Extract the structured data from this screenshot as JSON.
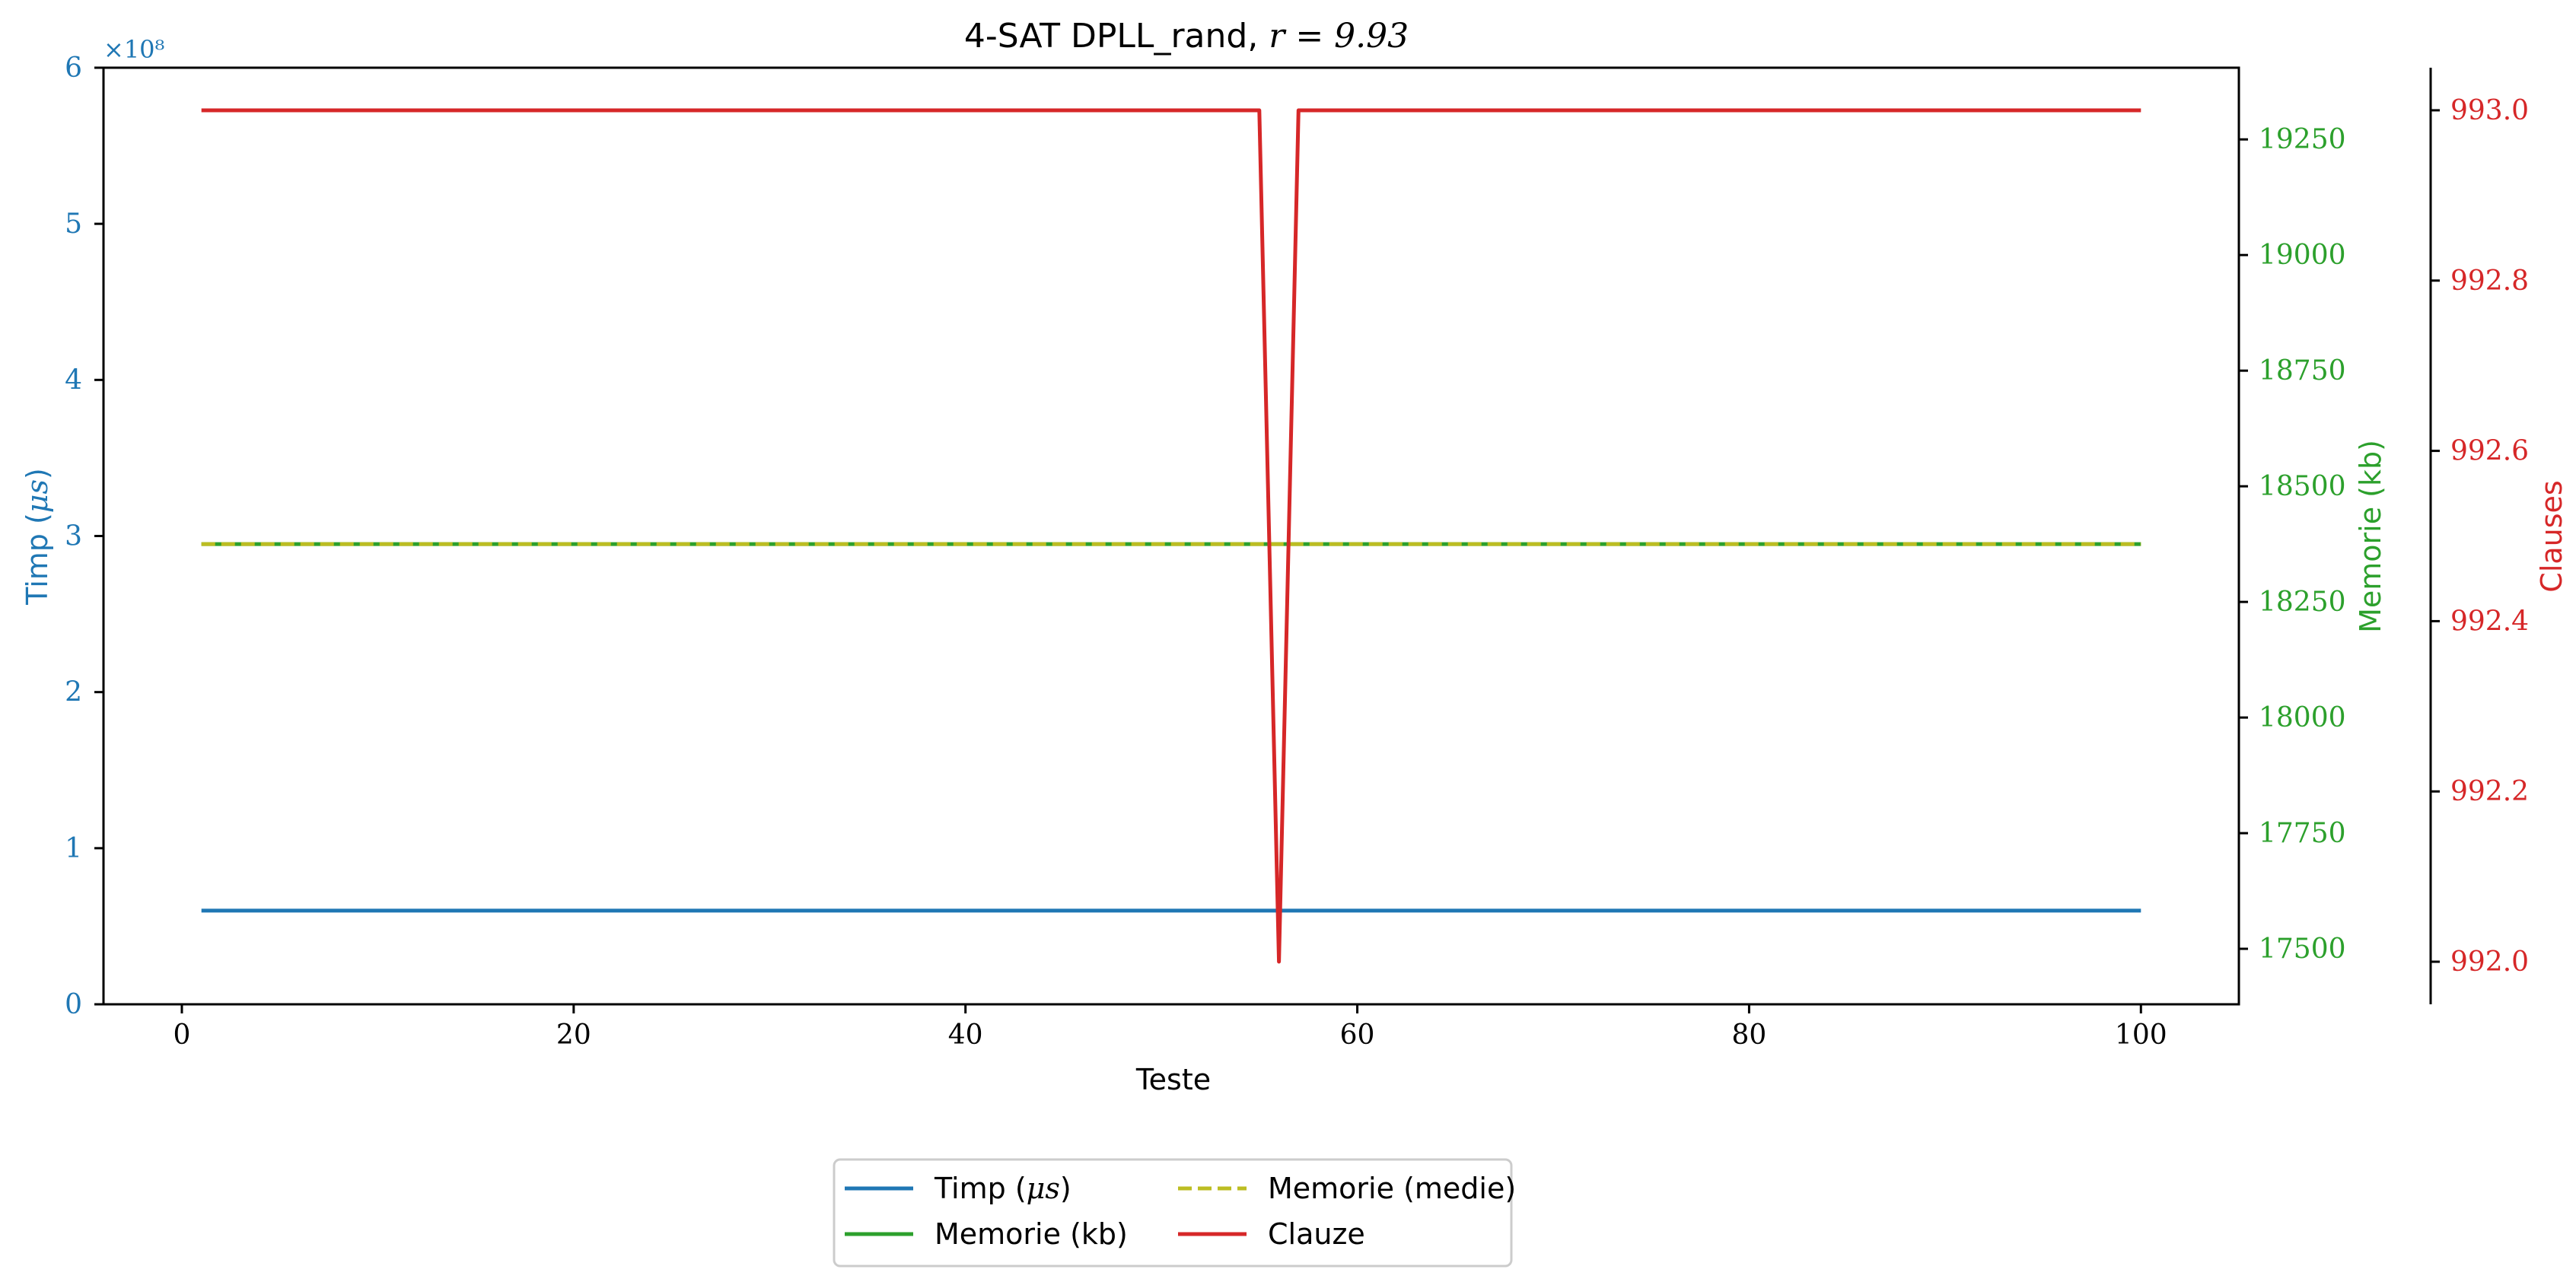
{
  "chart_data": {
    "type": "line",
    "title": "4-SAT DPLL_rand, r = 9.93",
    "title_prefix": "4-SAT DPLL_rand, ",
    "title_math": "r = 9.93",
    "xlabel": "Teste",
    "xlim": [
      -4,
      105
    ],
    "xticks": [
      0,
      20,
      40,
      60,
      80,
      100
    ],
    "axes": {
      "left": {
        "label_prefix": "Timp (",
        "label_math": "μs",
        "label_suffix": ")",
        "color": "#1f77b4",
        "ylim": [
          0,
          600000000
        ],
        "ticks": [
          0,
          1,
          2,
          3,
          4,
          5,
          6
        ],
        "multiplier": "×10⁸"
      },
      "right1": {
        "label": "Memorie (kb)",
        "color": "#2ca02c",
        "ylim": [
          17380,
          19405
        ],
        "ticks": [
          17500,
          17750,
          18000,
          18250,
          18500,
          18750,
          19000,
          19250
        ]
      },
      "right2": {
        "label": "Clauses",
        "color": "#d62728",
        "ylim": [
          991.95,
          993.05
        ],
        "ticks": [
          "992.0",
          "992.2",
          "992.4",
          "992.6",
          "992.8",
          "993.0"
        ]
      }
    },
    "series": [
      {
        "name": "Timp (μs)",
        "name_prefix": "Timp (",
        "name_math": "μs",
        "name_suffix": ")",
        "axis": "left",
        "color": "#1f77b4",
        "style": "solid",
        "x_range": [
          1,
          100
        ],
        "constant": 60000000
      },
      {
        "name": "Memorie (kb)",
        "axis": "right1",
        "color": "#2ca02c",
        "style": "solid",
        "x_range": [
          1,
          100
        ],
        "constant": 18375
      },
      {
        "name": "Memorie (medie)",
        "axis": "right1",
        "color": "#bcbd22",
        "style": "dashed",
        "x_range": [
          1,
          100
        ],
        "constant": 18375
      },
      {
        "name": "Clauze",
        "axis": "right2",
        "color": "#d62728",
        "style": "solid",
        "x": [
          1,
          55,
          56,
          57,
          100
        ],
        "y": [
          993,
          993,
          992,
          993,
          993
        ]
      }
    ],
    "legend": {
      "placement": "bottom-center",
      "columns": 2,
      "order": [
        0,
        2,
        1,
        3
      ]
    },
    "grid": false
  }
}
